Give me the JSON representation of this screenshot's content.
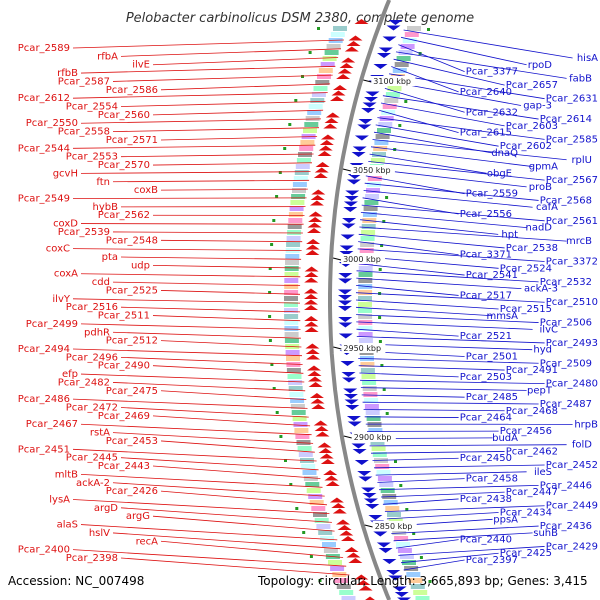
{
  "title": "Pelobacter carbinolicus DSM 2380, complete genome",
  "accession": "Accession: NC_007498",
  "topology": "Topology: circular; Length: 3,665,893 bp; Genes: 3,415",
  "colors": {
    "forward_strand": "#dd1111",
    "reverse_strand": "#1111cc",
    "backbone": "#888888",
    "tick": "#229922"
  },
  "scale_labels": [
    "3100 kbp",
    "3050 kbp",
    "3000 kbp",
    "2950 kbp",
    "2900 kbp",
    "2850 kbp"
  ],
  "left_labels": [
    "Pcar_2589",
    "rfbA",
    "ilvE",
    "rfbB",
    "Pcar_2587",
    "Pcar_2586",
    "Pcar_2612",
    "Pcar_2554",
    "Pcar_2560",
    "Pcar_2550",
    "Pcar_2558",
    "Pcar_2571",
    "Pcar_2544",
    "Pcar_2553",
    "Pcar_2570",
    "gcvH",
    "ftn",
    "coxB",
    "Pcar_2549",
    "hybB",
    "Pcar_2562",
    "coxD",
    "Pcar_2539",
    "Pcar_2548",
    "coxC",
    "pta",
    "udp",
    "coxA",
    "cdd",
    "Pcar_2525",
    "ilvY",
    "Pcar_2516",
    "Pcar_2511",
    "Pcar_2499",
    "pdhR",
    "Pcar_2512",
    "Pcar_2494",
    "Pcar_2496",
    "Pcar_2490",
    "efp",
    "Pcar_2482",
    "Pcar_2475",
    "Pcar_2486",
    "Pcar_2472",
    "Pcar_2469",
    "Pcar_2467",
    "rstA",
    "Pcar_2453",
    "Pcar_2451",
    "Pcar_2445",
    "Pcar_2443",
    "mltB",
    "ackA-2",
    "Pcar_2426",
    "lysA",
    "argD",
    "argG",
    "alaS",
    "hslV",
    "recA",
    "Pcar_2400",
    "Pcar_2398"
  ],
  "right_labels": [
    "hisA",
    "rpoD",
    "Pcar_3377",
    "fabB",
    "Pcar_2657",
    "Pcar_2640",
    "Pcar_2631",
    "gap-3",
    "Pcar_2632",
    "Pcar_2614",
    "Pcar_2603",
    "Pcar_2615",
    "Pcar_2585",
    "Pcar_2602",
    "dnaQ",
    "rplU",
    "gpmA",
    "obgE",
    "Pcar_2567",
    "proB",
    "Pcar_2559",
    "Pcar_2568",
    "cafA",
    "Pcar_2556",
    "Pcar_2561",
    "nadD",
    "hpt",
    "mrcB",
    "Pcar_2538",
    "Pcar_3371",
    "Pcar_3372",
    "Pcar_2524",
    "Pcar_2541",
    "Pcar_2532",
    "ackA-3",
    "Pcar_2517",
    "Pcar_2510",
    "Pcar_2515",
    "mmsA",
    "Pcar_2506",
    "ilvC",
    "Pcar_2521",
    "Pcar_2493",
    "hyd",
    "Pcar_2501",
    "Pcar_2509",
    "Pcar_2491",
    "Pcar_2503",
    "Pcar_2480",
    "pepT",
    "Pcar_2485",
    "Pcar_2487",
    "Pcar_2468",
    "Pcar_2464",
    "hrpB",
    "Pcar_2456",
    "budA",
    "folD",
    "Pcar_2462",
    "Pcar_2450",
    "Pcar_2452",
    "ileS",
    "Pcar_2458",
    "Pcar_2446",
    "Pcar_2447",
    "Pcar_2438",
    "Pcar_2449",
    "Pcar_2434",
    "ppsA",
    "Pcar_2436",
    "suhB",
    "Pcar_2440",
    "Pcar_2429",
    "Pcar_2425",
    "Pcar_2397"
  ]
}
